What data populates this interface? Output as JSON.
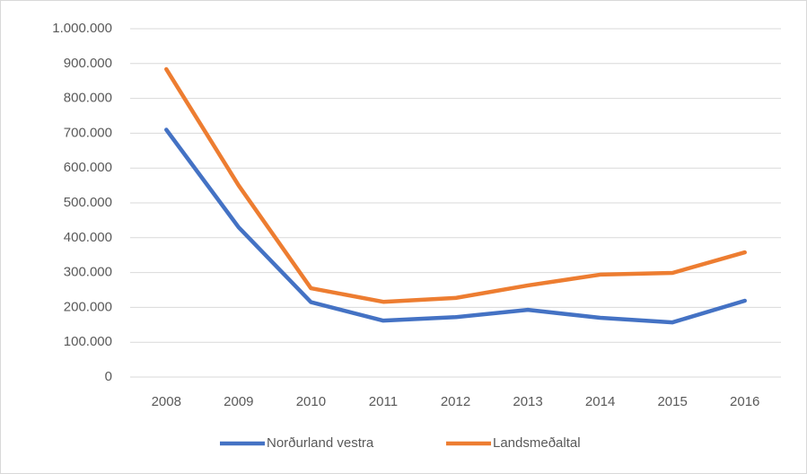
{
  "chart_data": {
    "type": "line",
    "categories": [
      "2008",
      "2009",
      "2010",
      "2011",
      "2012",
      "2013",
      "2014",
      "2015",
      "2016"
    ],
    "series": [
      {
        "name": "Norðurland vestra",
        "color": "#4472c4",
        "values": [
          710000,
          430000,
          215000,
          162000,
          172000,
          193000,
          170000,
          157000,
          219000
        ]
      },
      {
        "name": "Landsmeðaltal",
        "color": "#ed7d31",
        "values": [
          884000,
          550000,
          255000,
          216000,
          227000,
          263000,
          294000,
          299000,
          358000
        ]
      }
    ],
    "ylim": [
      0,
      1000000
    ],
    "yticks": [
      0,
      {
        "value": 100000,
        "label": "100.000"
      },
      {
        "value": 200000,
        "label": "200.000"
      },
      {
        "value": 300000,
        "label": "300.000"
      },
      {
        "value": 400000,
        "label": "400.000"
      },
      {
        "value": 500000,
        "label": "500.000"
      },
      {
        "value": 600000,
        "label": "600.000"
      },
      {
        "value": 700000,
        "label": "700.000"
      },
      {
        "value": 800000,
        "label": "800.000"
      },
      {
        "value": 900000,
        "label": "900.000"
      },
      {
        "value": 1000000,
        "label": "1.000.000"
      }
    ],
    "grid": true,
    "legend": "bottom"
  }
}
